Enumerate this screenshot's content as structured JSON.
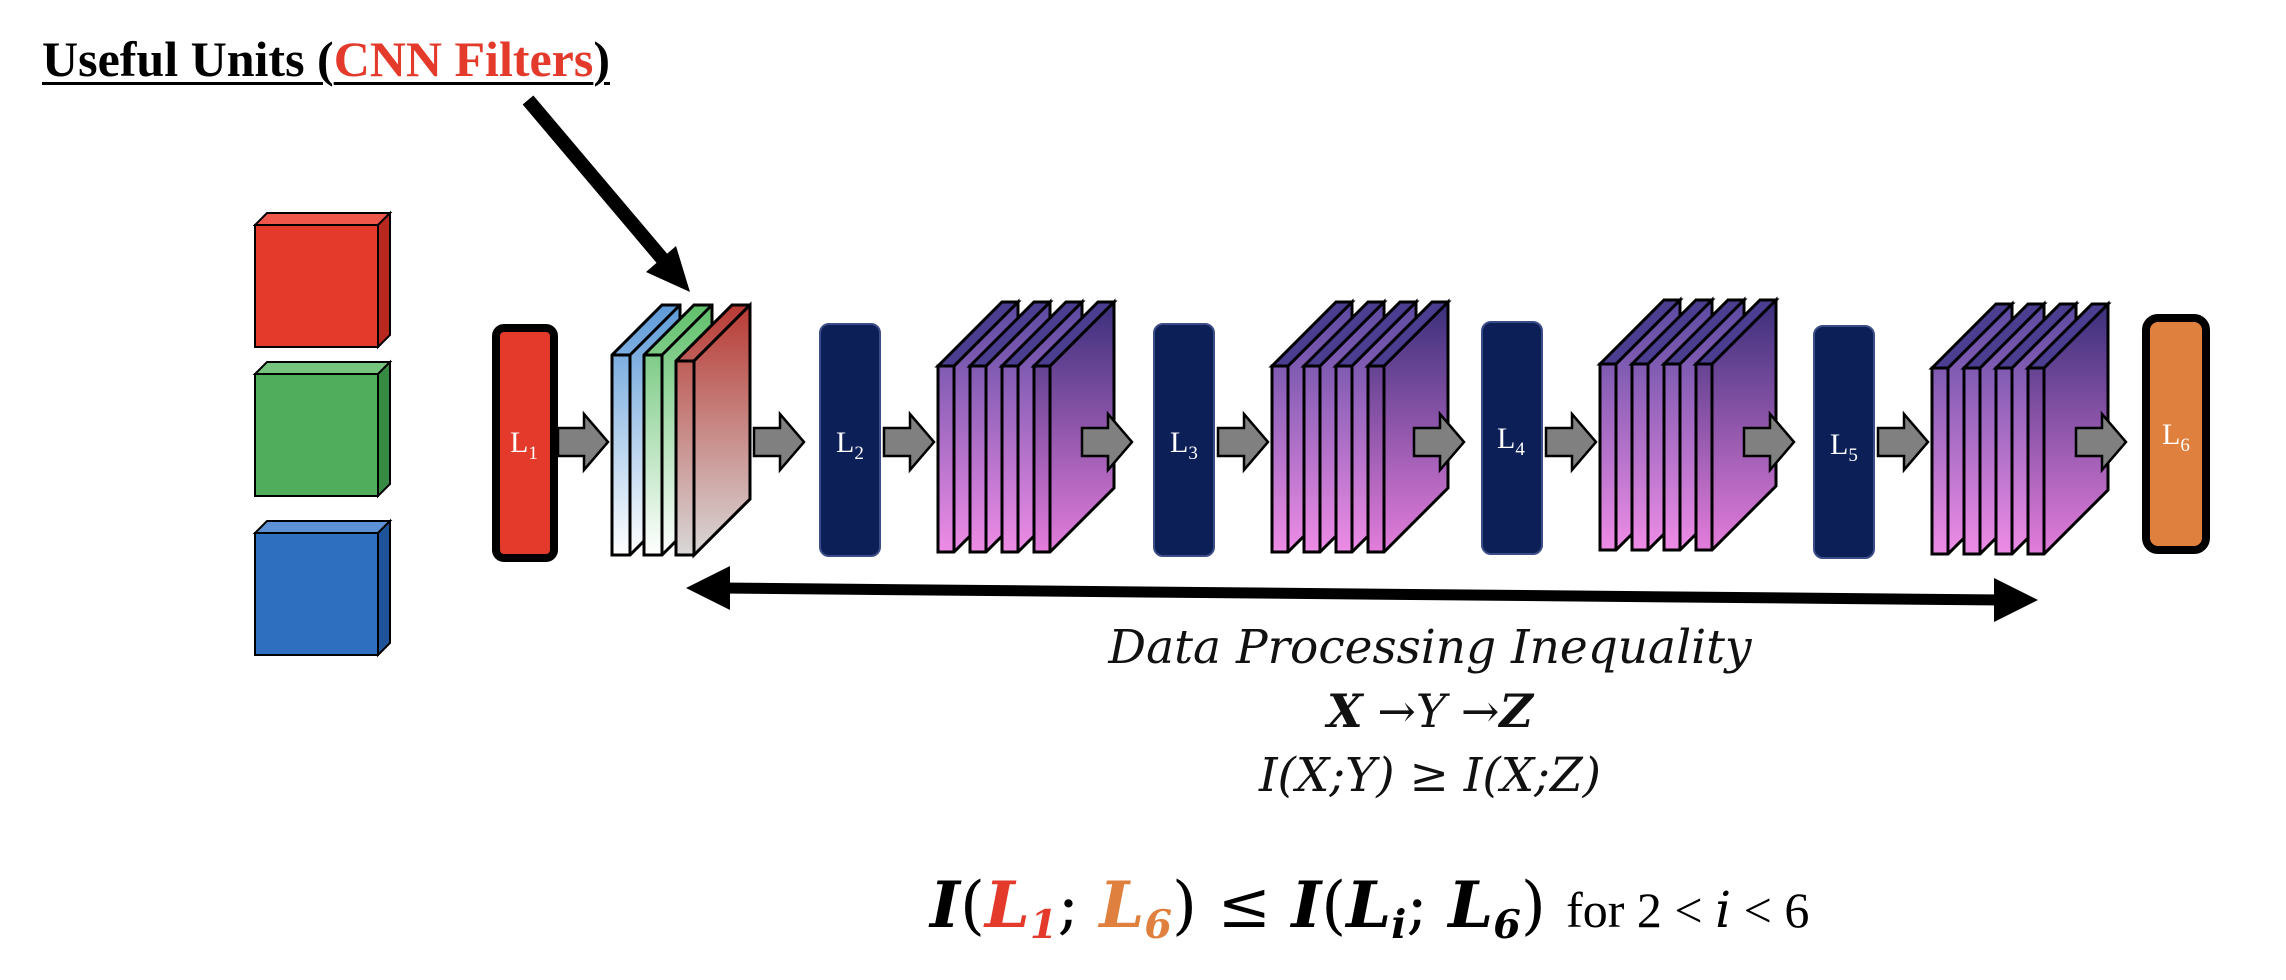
{
  "title": {
    "prefix": "Useful Units (",
    "highlight": "CNN Filters",
    "suffix": ")"
  },
  "layers": [
    "L",
    "L",
    "L",
    "L",
    "L",
    "L"
  ],
  "layer_subscripts": [
    "1",
    "2",
    "3",
    "4",
    "5",
    "6"
  ],
  "dpi": {
    "title": "Data Processing Inequality",
    "chain_x": "X",
    "chain_y": "Y",
    "chain_z": "Z",
    "arrow": "→",
    "inequality": "I(X;Y) ≥ I(X;Z)"
  },
  "equation": {
    "I": "I",
    "open": "(",
    "l1": "L",
    "l1_sub": "1",
    "sep": ";",
    "l6": "L",
    "l6_sub": "6",
    "close": ")",
    "leq": "≤",
    "li": "L",
    "li_sub": "i",
    "l6b": "L",
    "l6b_sub": "6",
    "tail_for": "for 2 <",
    "tail_i": "i",
    "tail_rest": "< 6"
  },
  "colors": {
    "red": "#e33a2c",
    "green": "#4fad5b",
    "blue": "#2f6fbf",
    "navy": "#0d1f57",
    "orange": "#e0803f",
    "purple_top": "#3a2f7a",
    "purple_bottom": "#e37ddb"
  }
}
